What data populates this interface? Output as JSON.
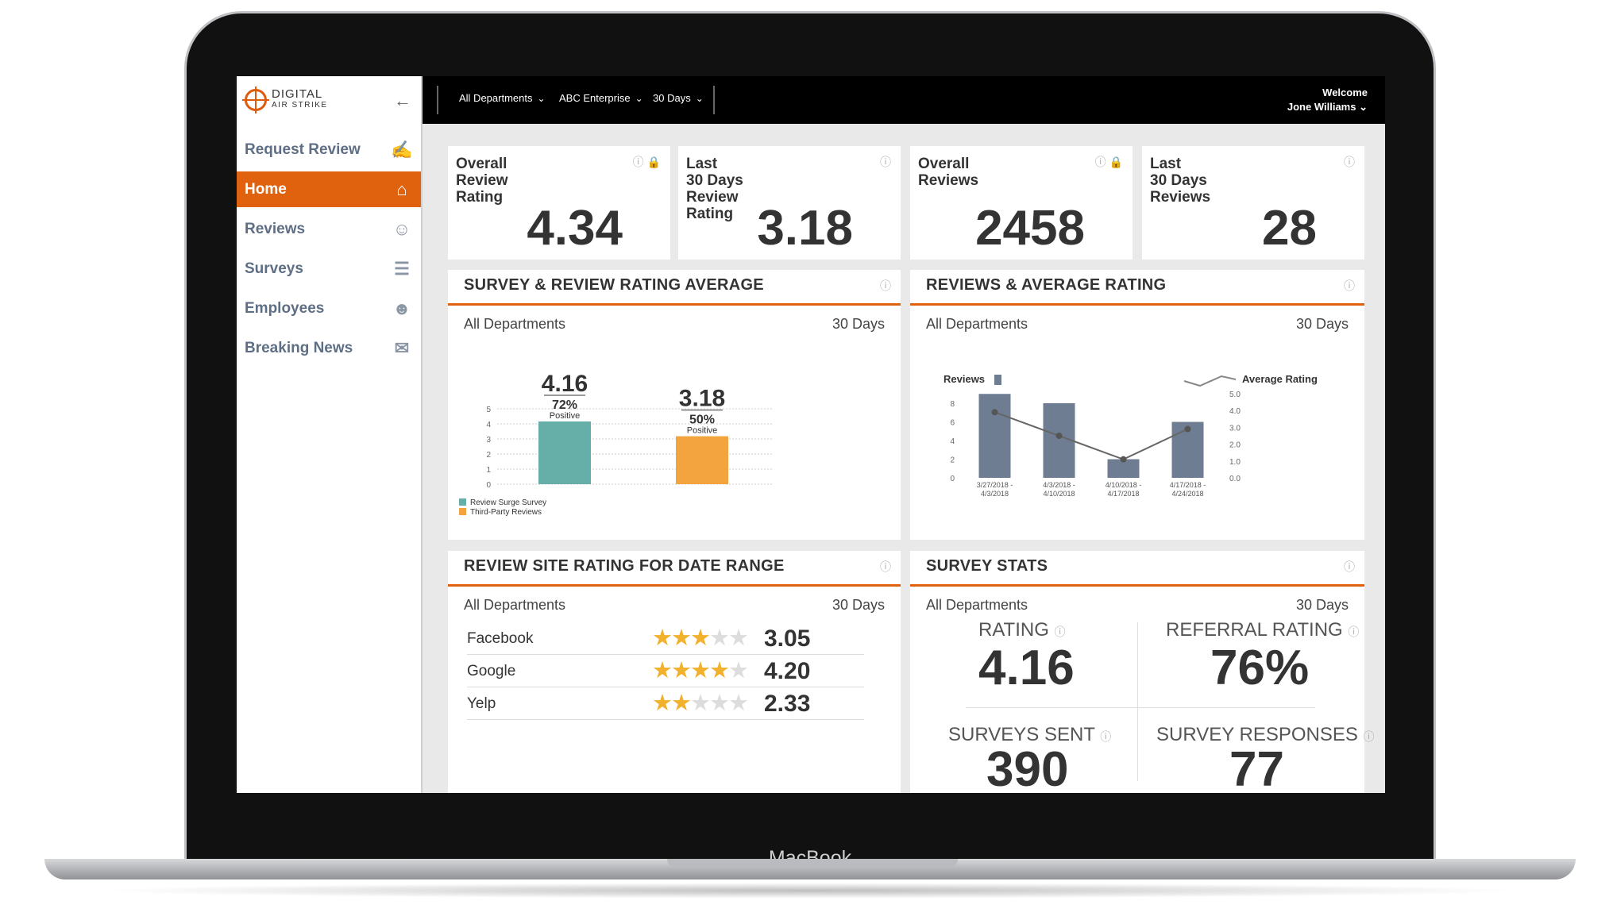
{
  "device": {
    "label": "MacBook"
  },
  "app": {
    "logo_line1": "DIGITAL",
    "logo_line2": "AIR STRIKE"
  },
  "sidebar": {
    "items": [
      {
        "label": "Request Review",
        "icon": "request-review-icon",
        "glyph": "📱"
      },
      {
        "label": "Home",
        "icon": "home-icon",
        "glyph": "⌂",
        "active": true
      },
      {
        "label": "Reviews",
        "icon": "reviews-icon",
        "glyph": "👤"
      },
      {
        "label": "Surveys",
        "icon": "surveys-icon",
        "glyph": "📋"
      },
      {
        "label": "Employees",
        "icon": "employees-icon",
        "glyph": "👥"
      },
      {
        "label": "Breaking News",
        "icon": "breaking-news-icon",
        "glyph": "💬"
      }
    ]
  },
  "topbar": {
    "department": "All Departments",
    "enterprise": "ABC Enterprise",
    "range": "30 Days",
    "welcome": "Welcome",
    "user": "Jone Williams"
  },
  "stats": [
    {
      "title": "Overall\nReview\nRating",
      "value": "4.34",
      "locked": true
    },
    {
      "title": "Last\n30 Days\nReview\nRating",
      "value": "3.18",
      "locked": false
    },
    {
      "title": "Overall\nReviews",
      "value": "2458",
      "locked": true
    },
    {
      "title": "Last\n30 Days\nReviews",
      "value": "28",
      "locked": false
    }
  ],
  "panels": {
    "survey_avg": {
      "title": "SURVEY & REVIEW RATING AVERAGE",
      "dept": "All Departments",
      "range": "30 Days"
    },
    "reviews_avg": {
      "title": "REVIEWS & AVERAGE RATING",
      "dept": "All Departments",
      "range": "30 Days"
    },
    "site_rating": {
      "title": "REVIEW SITE RATING FOR DATE RANGE",
      "dept": "All Departments",
      "range": "30 Days",
      "rows": [
        {
          "name": "Facebook",
          "score": "3.05",
          "stars": 3.05
        },
        {
          "name": "Google",
          "score": "4.20",
          "stars": 4.2
        },
        {
          "name": "Yelp",
          "score": "2.33",
          "stars": 2.33
        }
      ]
    },
    "survey_stats": {
      "title": "SURVEY STATS",
      "dept": "All Departments",
      "range": "30 Days",
      "rating_label": "RATING",
      "rating_value": "4.16",
      "referral_label": "REFERRAL RATING",
      "referral_value": "76%",
      "sent_label": "SURVEYS SENT",
      "sent_value": "390",
      "responses_label": "SURVEY RESPONSES",
      "responses_value": "77"
    }
  },
  "colors": {
    "accent": "#e0620f",
    "teal": "#66afa9",
    "orange": "#f3a43f",
    "slate": "#6e7d92",
    "line": "#666666"
  },
  "chart_data": [
    {
      "type": "bar",
      "categories": [
        "Review Surge Survey",
        "Third-Party Reviews"
      ],
      "values": [
        4.16,
        3.18
      ],
      "percent_labels": [
        "72%",
        "50%"
      ],
      "sublabels": [
        "Positive",
        "Positive"
      ],
      "ylim": [
        0,
        5
      ],
      "yticks": [
        "0",
        "1",
        "2",
        "3",
        "4",
        "5"
      ],
      "legend": [
        "Review Surge Survey",
        "Third-Party Reviews"
      ],
      "grid": true
    },
    {
      "type": "bar",
      "categories": [
        "3/27/2018 -\n4/3/2018",
        "4/3/2018 -\n4/10/2018",
        "4/10/2018 -\n4/17/2018",
        "4/17/2018 -\n4/24/2018"
      ],
      "series": [
        {
          "name": "Reviews",
          "type": "bar",
          "values": [
            9,
            8,
            2,
            6
          ],
          "axis": "left"
        },
        {
          "name": "Average Rating",
          "type": "line",
          "values": [
            3.9,
            2.5,
            1.1,
            2.9
          ],
          "axis": "right"
        }
      ],
      "ylim_left": [
        0,
        8
      ],
      "ylim_right": [
        0,
        5
      ],
      "yticks_left": [
        "0",
        "2",
        "4",
        "6",
        "8"
      ],
      "yticks_right": [
        "0.0",
        "1.0",
        "2.0",
        "3.0",
        "4.0",
        "5.0"
      ],
      "legend": "top"
    }
  ]
}
